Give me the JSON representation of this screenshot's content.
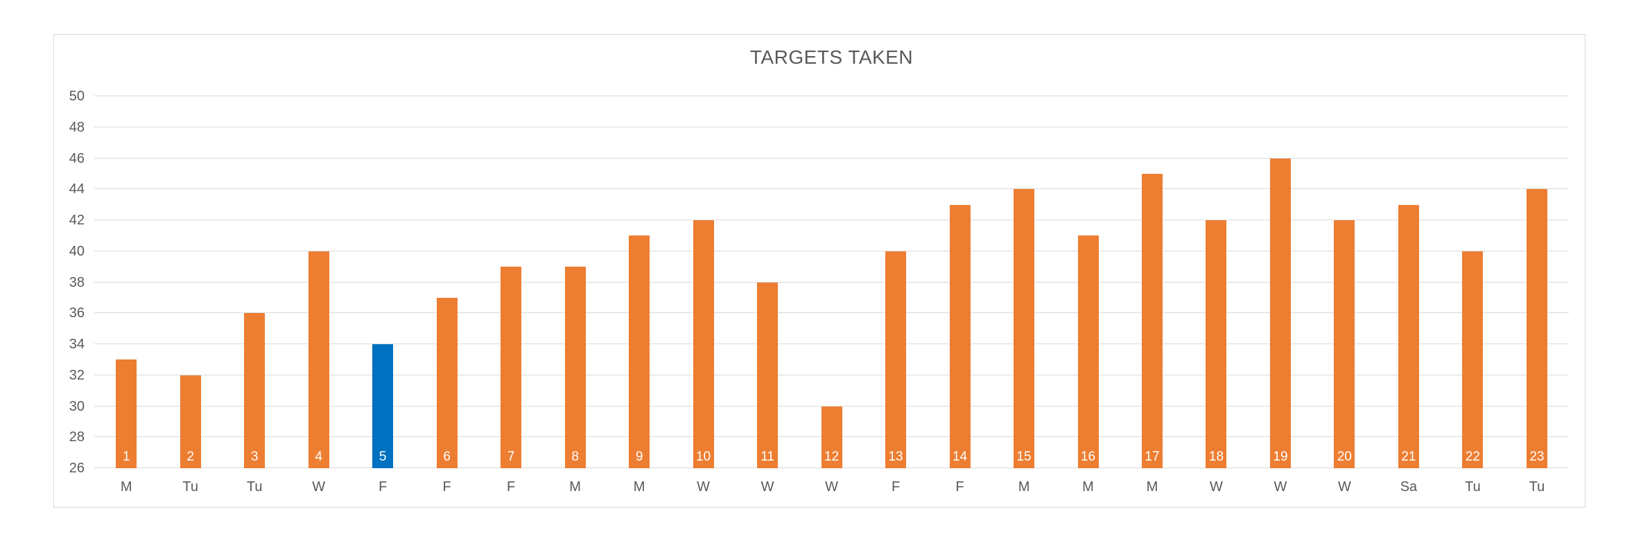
{
  "chart": {
    "title": "TARGETS TAKEN"
  },
  "chart_data": {
    "type": "bar",
    "title": "TARGETS TAKEN",
    "categories": [
      "M",
      "Tu",
      "Tu",
      "W",
      "F",
      "F",
      "F",
      "M",
      "M",
      "W",
      "W",
      "W",
      "F",
      "F",
      "M",
      "M",
      "M",
      "W",
      "W",
      "W",
      "Sa",
      "Tu",
      "Tu"
    ],
    "bar_labels": [
      "1",
      "2",
      "3",
      "4",
      "5",
      "6",
      "7",
      "8",
      "9",
      "10",
      "11",
      "12",
      "13",
      "14",
      "15",
      "16",
      "17",
      "18",
      "19",
      "20",
      "21",
      "22",
      "23"
    ],
    "values": [
      33,
      32,
      36,
      40,
      34,
      37,
      39,
      39,
      41,
      42,
      38,
      30,
      40,
      43,
      44,
      41,
      45,
      42,
      46,
      42,
      43,
      40,
      44
    ],
    "highlighted_index": 4,
    "ylim": [
      26,
      50
    ],
    "ytick_step": 2,
    "xlabel": "",
    "ylabel": "",
    "grid": true,
    "legend": "none",
    "colors": {
      "bar": "#ED7D31",
      "highlight": "#0070C0",
      "grid": "#D9D9D9",
      "axis_text": "#595959",
      "title_text": "#595959",
      "bar_label_text": "#FFFFFF",
      "border": "#D9D9D9"
    }
  }
}
